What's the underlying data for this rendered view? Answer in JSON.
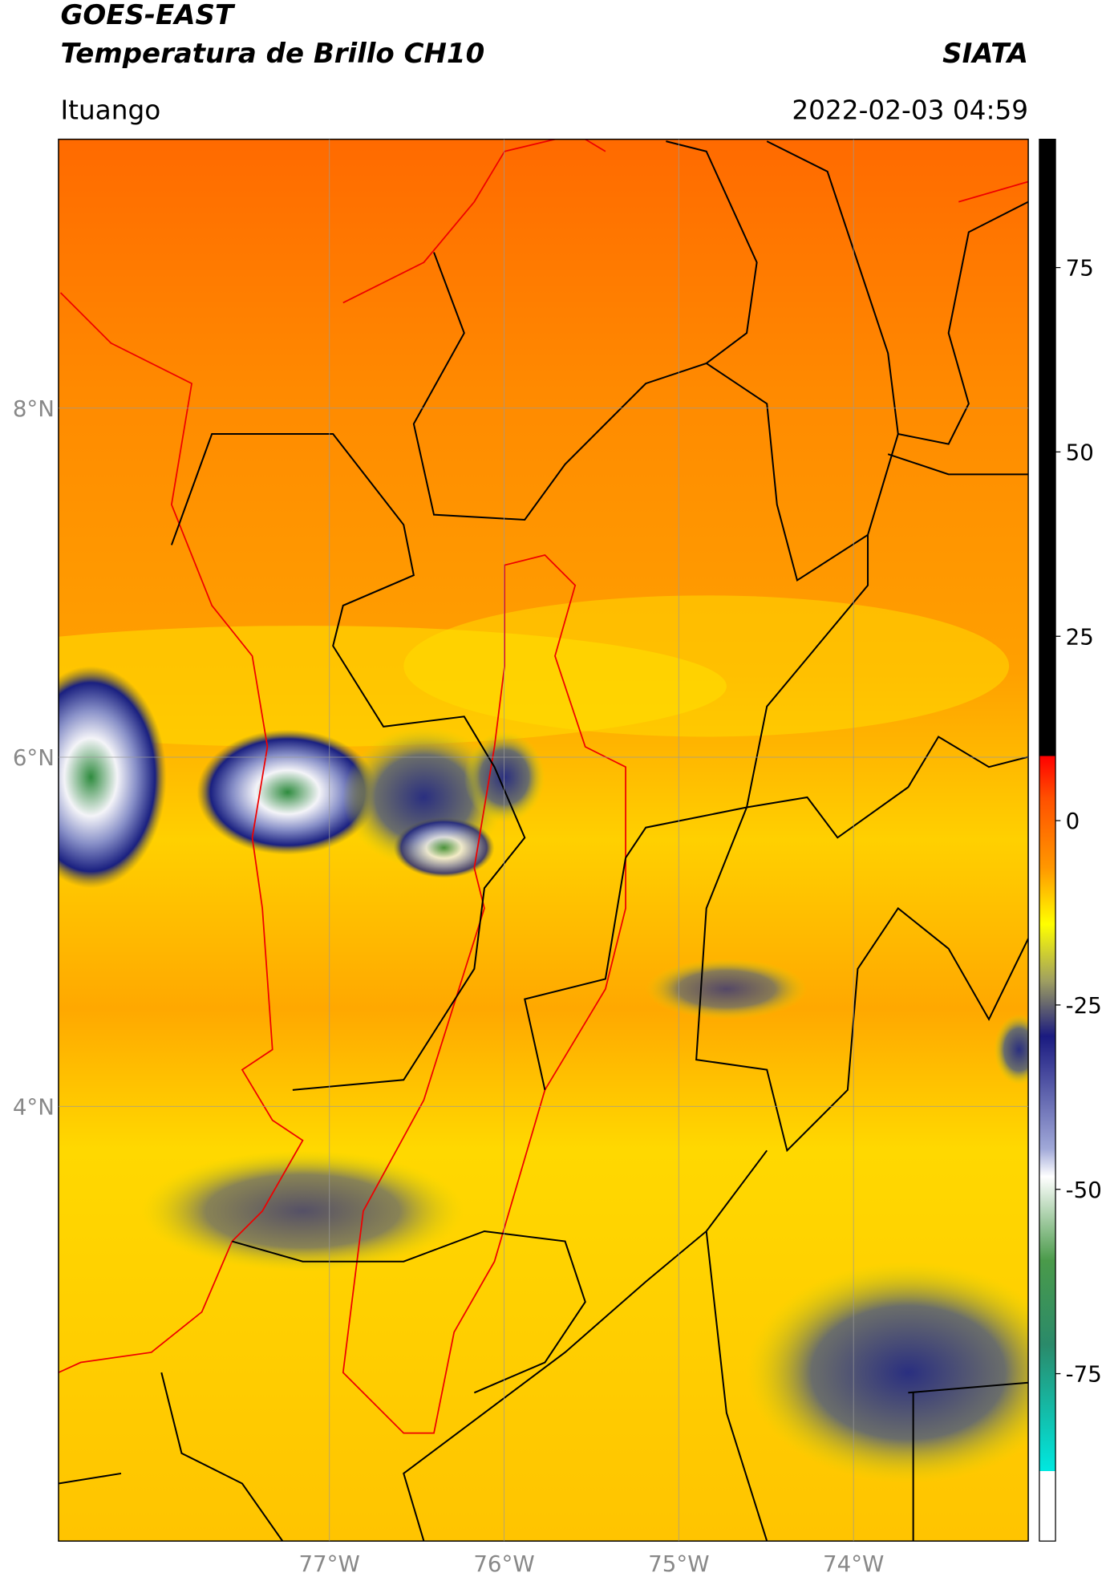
{
  "header": {
    "title": "GOES-EAST",
    "subtitle": "Temperatura de Brillo CH10",
    "source": "SIATA",
    "location": "Ituango",
    "timestamp": "2022-02-03 04:59"
  },
  "map": {
    "xlim": [
      -78.55,
      -73.0
    ],
    "ylim": [
      1.51,
      9.54
    ],
    "xticks": [
      {
        "value": -77,
        "label": "77°W"
      },
      {
        "value": -76,
        "label": "76°W"
      },
      {
        "value": -75,
        "label": "75°W"
      },
      {
        "value": -74,
        "label": "74°W"
      }
    ],
    "yticks": [
      {
        "value": 8,
        "label": "8°N"
      },
      {
        "value": 6,
        "label": "6°N"
      },
      {
        "value": 4,
        "label": "4°N"
      }
    ],
    "grid": true
  },
  "colorbar": {
    "lim": [
      -97.7,
      92.4
    ],
    "ticks": [
      75,
      50,
      25,
      0,
      -25,
      -50,
      -75
    ]
  }
}
